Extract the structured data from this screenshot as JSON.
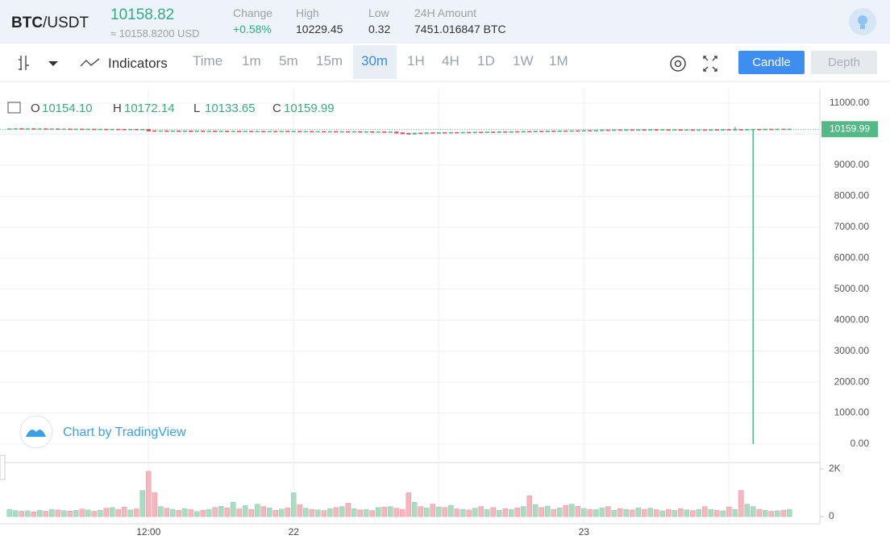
{
  "header": {
    "base": "BTC",
    "quote": "/USDT",
    "price": "10158.82",
    "price_usd": "≈ 10158.8200 USD",
    "stats": [
      {
        "label": "Change",
        "value": "+0.58%"
      },
      {
        "label": "High",
        "value": "10229.45"
      },
      {
        "label": "Low",
        "value": "0.32"
      },
      {
        "label": "24H Amount",
        "value": "7451.016847 BTC"
      }
    ]
  },
  "toolbar": {
    "indicators": "Indicators",
    "intervals": [
      "Time",
      "1m",
      "5m",
      "15m",
      "30m",
      "1H",
      "4H",
      "1D",
      "1W",
      "1M"
    ],
    "active_interval": "30m",
    "buttons": [
      "Candle",
      "Depth"
    ]
  },
  "watermark": "Chart by TradingView",
  "chart_data": {
    "type": "candlestick",
    "legend": [
      {
        "key": "O",
        "value": "10154.10"
      },
      {
        "key": "H",
        "value": "10172.14"
      },
      {
        "key": "L",
        "value": "10133.65"
      },
      {
        "key": "C",
        "value": "10159.99"
      }
    ],
    "categories": [
      null,
      null,
      null,
      null,
      null,
      null,
      null,
      null,
      null,
      null,
      null,
      null,
      null,
      null,
      null,
      null,
      null,
      null,
      null,
      null,
      null,
      null,
      null,
      "12:00",
      null,
      null,
      null,
      null,
      null,
      null,
      null,
      null,
      null,
      null,
      null,
      null,
      null,
      null,
      null,
      null,
      null,
      null,
      null,
      null,
      null,
      null,
      null,
      "22",
      null,
      null,
      null,
      null,
      null,
      null,
      null,
      null,
      null,
      null,
      null,
      null,
      null,
      null,
      null,
      null,
      null,
      null,
      null,
      null,
      null,
      null,
      null,
      null,
      null,
      null,
      null,
      null,
      null,
      null,
      null,
      null,
      null,
      null,
      null,
      null,
      null,
      null,
      null,
      null,
      null,
      null,
      null,
      null,
      null,
      null,
      null,
      "23",
      null,
      null,
      null,
      null,
      null,
      null,
      null,
      null,
      null,
      null,
      null,
      null,
      null,
      null,
      null,
      null,
      null,
      null,
      null,
      null,
      null,
      null,
      null,
      null,
      null,
      null,
      null,
      null,
      null,
      null,
      null,
      null,
      null,
      null
    ],
    "candles": {
      "open": [
        10160,
        10168,
        10172,
        10165,
        10170,
        10163,
        10168,
        10160,
        10166,
        10158,
        10162,
        10155,
        10160,
        10152,
        10158,
        10150,
        10156,
        10148,
        10154,
        10150,
        10146,
        10152,
        10145,
        10150,
        10105,
        10098,
        10102,
        10095,
        10100,
        10092,
        10098,
        10090,
        10095,
        10088,
        10093,
        10086,
        10090,
        10084,
        10088,
        10082,
        10086,
        10080,
        10085,
        10078,
        10084,
        10080,
        10086,
        10082,
        10085,
        10078,
        10083,
        10076,
        10080,
        10074,
        10079,
        10072,
        10077,
        10070,
        10075,
        10068,
        10073,
        10066,
        10070,
        10062,
        10066,
        10040,
        10020,
        10010,
        10030,
        10025,
        10040,
        10035,
        10045,
        10040,
        10050,
        10045,
        10055,
        10050,
        10060,
        10055,
        10065,
        10060,
        10070,
        10066,
        10076,
        10072,
        10082,
        10078,
        10088,
        10084,
        10094,
        10090,
        10100,
        10096,
        10106,
        10102,
        10112,
        10108,
        10118,
        10130,
        10125,
        10135,
        10128,
        10138,
        10130,
        10140,
        10133,
        10142,
        10135,
        10140,
        10132,
        10138,
        10130,
        10136,
        10128,
        10134,
        10130,
        10138,
        10134,
        10142,
        10138,
        10145,
        10140,
        10148,
        10152,
        10146,
        10156,
        10150,
        10158,
        10154.1
      ],
      "high": [
        10176,
        10180,
        10180,
        10178,
        10178,
        10176,
        10176,
        10174,
        10174,
        10170,
        10170,
        10168,
        10168,
        10166,
        10166,
        10164,
        10164,
        10162,
        10162,
        10158,
        10160,
        10160,
        10158,
        10158,
        10113,
        10110,
        10110,
        10108,
        10108,
        10106,
        10106,
        10103,
        10103,
        10101,
        10101,
        10098,
        10098,
        10096,
        10096,
        10094,
        10094,
        10093,
        10093,
        10092,
        10092,
        10094,
        10094,
        10093,
        10093,
        10091,
        10091,
        10088,
        10088,
        10087,
        10087,
        10085,
        10085,
        10083,
        10083,
        10081,
        10081,
        10078,
        10078,
        10074,
        10074,
        10048,
        10028,
        10038,
        10038,
        10048,
        10048,
        10053,
        10053,
        10058,
        10058,
        10063,
        10063,
        10068,
        10068,
        10073,
        10073,
        10078,
        10078,
        10084,
        10084,
        10090,
        10090,
        10096,
        10096,
        10102,
        10102,
        10108,
        10108,
        10114,
        10114,
        10120,
        10120,
        10126,
        10138,
        10138,
        10143,
        10143,
        10146,
        10146,
        10148,
        10148,
        10150,
        10150,
        10148,
        10148,
        10146,
        10146,
        10144,
        10144,
        10142,
        10142,
        10146,
        10146,
        10150,
        10150,
        10229.45,
        10153,
        10156,
        10160,
        10160,
        10164,
        10164,
        10166,
        10166,
        10172.14
      ],
      "low": [
        10152,
        10160,
        10157,
        10157,
        10155,
        10155,
        10152,
        10152,
        10150,
        10150,
        10147,
        10147,
        10144,
        10144,
        10142,
        10142,
        10140,
        10140,
        10142,
        10138,
        10138,
        10137,
        10137,
        10097,
        10090,
        10090,
        10087,
        10087,
        10084,
        10084,
        10082,
        10082,
        10080,
        10080,
        10078,
        10078,
        10076,
        10076,
        10074,
        10074,
        10072,
        10072,
        10070,
        10070,
        10072,
        10072,
        10074,
        10074,
        10070,
        10070,
        10068,
        10068,
        10066,
        10066,
        10064,
        10064,
        10062,
        10062,
        10060,
        10060,
        10058,
        10058,
        10054,
        10054,
        10032,
        10012,
        10002,
        10002,
        10017,
        10017,
        10027,
        10027,
        10032,
        10032,
        10037,
        10037,
        10042,
        10042,
        10047,
        10047,
        10052,
        10052,
        10058,
        10058,
        10064,
        10064,
        10070,
        10070,
        10076,
        10076,
        10082,
        10082,
        10088,
        10088,
        10094,
        10094,
        10100,
        10100,
        10110,
        10117,
        10117,
        10120,
        10120,
        10122,
        10122,
        10125,
        10125,
        10127,
        10127,
        10124,
        10124,
        10122,
        10122,
        10120,
        10120,
        10122,
        10122,
        10126,
        10126,
        10130,
        10130,
        10132,
        10132,
        0.32,
        10138,
        10138,
        10142,
        10142,
        10146,
        10133.65
      ],
      "close": [
        10168,
        10172,
        10165,
        10170,
        10163,
        10168,
        10160,
        10166,
        10158,
        10162,
        10155,
        10160,
        10152,
        10158,
        10150,
        10156,
        10148,
        10154,
        10150,
        10146,
        10152,
        10145,
        10150,
        10105,
        10098,
        10102,
        10095,
        10100,
        10092,
        10098,
        10090,
        10095,
        10088,
        10093,
        10086,
        10090,
        10084,
        10088,
        10082,
        10086,
        10080,
        10085,
        10078,
        10084,
        10080,
        10086,
        10082,
        10085,
        10078,
        10083,
        10076,
        10080,
        10074,
        10079,
        10072,
        10077,
        10070,
        10075,
        10068,
        10073,
        10066,
        10070,
        10062,
        10066,
        10040,
        10020,
        10010,
        10030,
        10025,
        10040,
        10035,
        10045,
        10040,
        10050,
        10045,
        10055,
        10050,
        10060,
        10055,
        10065,
        10060,
        10070,
        10066,
        10076,
        10072,
        10082,
        10078,
        10088,
        10084,
        10094,
        10090,
        10100,
        10096,
        10106,
        10102,
        10112,
        10108,
        10118,
        10130,
        10125,
        10135,
        10128,
        10138,
        10130,
        10140,
        10133,
        10142,
        10135,
        10140,
        10132,
        10138,
        10130,
        10136,
        10128,
        10134,
        10130,
        10138,
        10134,
        10142,
        10138,
        10145,
        10140,
        10148,
        10152,
        10146,
        10156,
        10150,
        10158,
        10154.1,
        10159.99
      ]
    },
    "up_color": "#53b987",
    "down_color": "#eb4d5c",
    "volume_up_color": "#a9dcc3",
    "volume_down_color": "#f5b6bd",
    "ylim": [
      -494,
      11469
    ],
    "yticks": [
      {
        "value": 0,
        "label": "0.00"
      },
      {
        "value": 1000,
        "label": "1000.00"
      },
      {
        "value": 2000,
        "label": "2000.00"
      },
      {
        "value": 3000,
        "label": "3000.00"
      },
      {
        "value": 4000,
        "label": "4000.00"
      },
      {
        "value": 5000,
        "label": "5000.00"
      },
      {
        "value": 6000,
        "label": "6000.00"
      },
      {
        "value": 7000,
        "label": "7000.00"
      },
      {
        "value": 8000,
        "label": "8000.00"
      },
      {
        "value": 9000,
        "label": "9000.00"
      },
      {
        "value": 10000,
        "label": "10000.00"
      },
      {
        "value": 11000,
        "label": "11000.00"
      }
    ],
    "grid": true,
    "volume": {
      "values": [
        300,
        250,
        220,
        240,
        200,
        260,
        220,
        300,
        280,
        250,
        230,
        260,
        310,
        280,
        220,
        260,
        350,
        380,
        300,
        400,
        280,
        320,
        1100,
        1900,
        1000,
        420,
        350,
        300,
        260,
        330,
        290,
        210,
        260,
        300,
        380,
        430,
        360,
        600,
        320,
        460,
        300,
        520,
        420,
        360,
        260,
        310,
        360,
        1000,
        500,
        350,
        300,
        280,
        250,
        330,
        380,
        420,
        560,
        330,
        280,
        300,
        250,
        380,
        400,
        420,
        350,
        300,
        1000,
        600,
        420,
        360,
        520,
        400,
        380,
        470,
        320,
        300,
        280,
        350,
        420,
        300,
        380,
        260,
        330,
        300,
        360,
        420,
        870,
        500,
        380,
        440,
        300,
        360,
        470,
        520,
        430,
        340,
        300,
        290,
        360,
        420,
        260,
        330,
        300,
        280,
        360,
        300,
        350,
        290,
        240,
        300,
        260,
        330,
        280,
        250,
        300,
        420,
        300,
        260,
        240,
        400,
        300,
        1100,
        520,
        420,
        300,
        260,
        220,
        240,
        260,
        300
      ],
      "ylim": [
        -305,
        2203
      ],
      "yticks": [
        0,
        {
          "value": 2000,
          "label": "2K"
        }
      ]
    }
  }
}
